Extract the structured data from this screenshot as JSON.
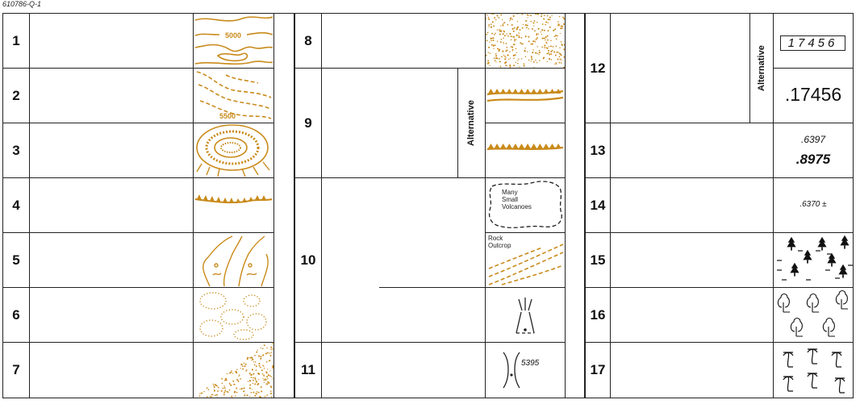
{
  "doc_id": "610786-Q-1",
  "colors": {
    "terrain": "#c98a1a",
    "line": "#222222"
  },
  "rows": [
    {
      "num": "1",
      "symbol": "contour-lines",
      "contour_value": "5000"
    },
    {
      "num": "2",
      "symbol": "approximate-contours",
      "contour_value": "5500"
    },
    {
      "num": "3",
      "symbol": "crater"
    },
    {
      "num": "4",
      "symbol": "ridge"
    },
    {
      "num": "5",
      "symbol": "lava-flow"
    },
    {
      "num": "6",
      "symbol": "depressions"
    },
    {
      "num": "7",
      "symbol": "sand-area"
    },
    {
      "num": "8",
      "symbol": "sand-dunes"
    },
    {
      "num": "9",
      "symbol": "escarpment",
      "alt_label": "Alternative"
    },
    {
      "num": "10",
      "symbol": "volcanic-features",
      "label_a": "Many\nSmall\nVolcanoes",
      "label_b": "Rock\nOutcrop"
    },
    {
      "num": "11",
      "symbol": "pass",
      "elevation": "5395"
    },
    {
      "num": "12",
      "symbol": "spot-elevation",
      "alt_label": "Alternative",
      "value_boxed": "17456",
      "value": ".17456"
    },
    {
      "num": "13",
      "symbol": "spot-elevations",
      "value_top": ".6397",
      "value_bottom": ".8975"
    },
    {
      "num": "14",
      "symbol": "approx-elevation",
      "value": ".6370 ±"
    },
    {
      "num": "15",
      "symbol": "marsh-trees"
    },
    {
      "num": "16",
      "symbol": "deciduous-trees"
    },
    {
      "num": "17",
      "symbol": "palm-trees"
    }
  ]
}
